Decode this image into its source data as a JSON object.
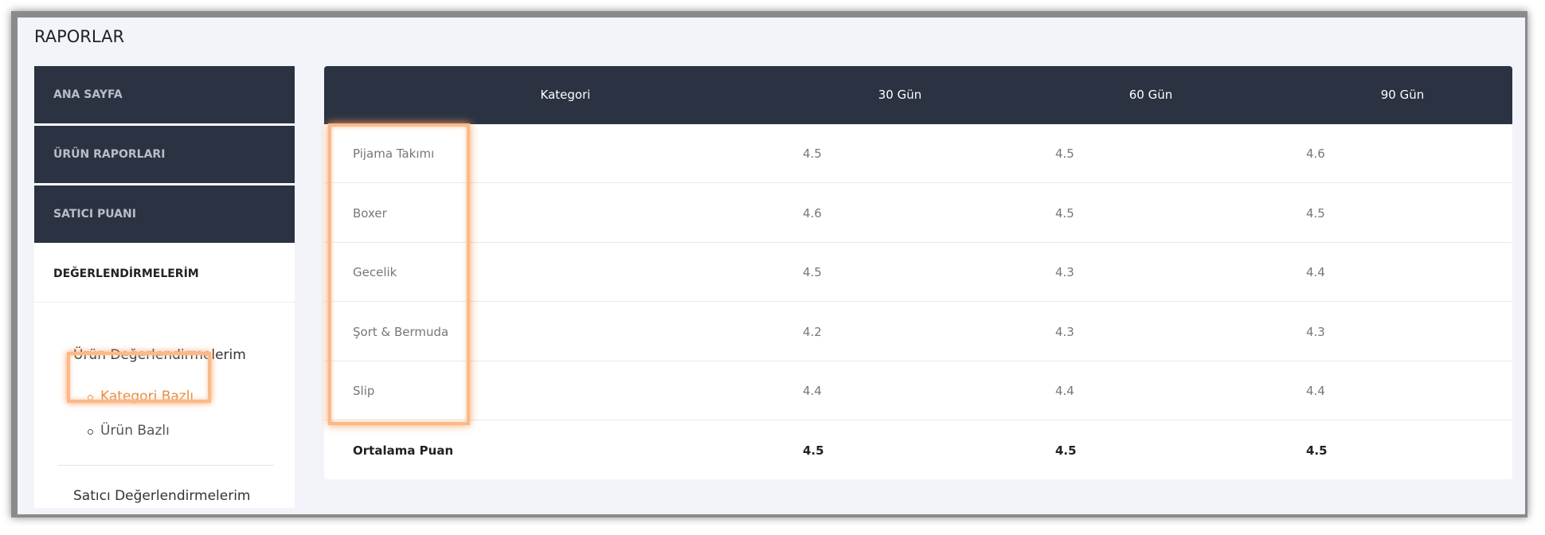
{
  "header": {
    "title": "RAPORLAR"
  },
  "menu": {
    "items": [
      "ANA SAYFA",
      "ÜRÜN RAPORLARI",
      "SATICI PUANI"
    ],
    "active": "DEĞERLENDİRMELERİM",
    "submenu": {
      "title": "Ürün Değerlendirmelerim",
      "children": [
        "Kategori Bazlı",
        "Ürün Bazlı"
      ]
    },
    "other": "Satıcı Değerlendirmelerim"
  },
  "table": {
    "columns": [
      "Kategori",
      "30 Gün",
      "60 Gün",
      "90 Gün"
    ],
    "rows": [
      [
        "Pijama Takımı",
        4.5,
        4.5,
        4.6
      ],
      [
        "Boxer",
        4.6,
        4.5,
        4.5
      ],
      [
        "Gecelik",
        4.5,
        4.3,
        4.4
      ],
      [
        "Şort & Bermuda",
        4.2,
        4.3,
        4.3
      ],
      [
        "Slip",
        4.4,
        4.4,
        4.4
      ]
    ],
    "footer": [
      "Ortalama Puan",
      4.5,
      4.5,
      4.5
    ]
  }
}
